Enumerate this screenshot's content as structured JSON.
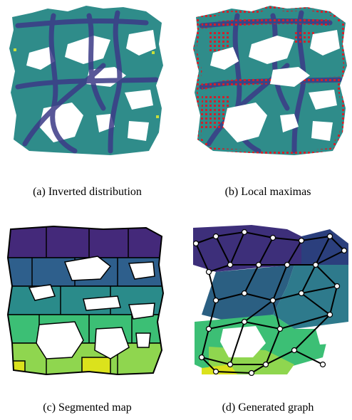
{
  "captions": {
    "a": "(a) Inverted distribution",
    "b": "(b) Local maximas",
    "c": "(c) Segmented map",
    "d": "(d) Generated graph"
  },
  "colors": {
    "teal": "#2f8c8a",
    "dark_purple": "#3d2f7a",
    "navy": "#2b3f7d",
    "blue_green": "#2e7a8c",
    "green": "#3cbf75",
    "light_green": "#8fd64f",
    "yellow": "#dbe21c",
    "red_marker": "#d0202a",
    "edge": "#000000",
    "node": "#ffffff"
  }
}
